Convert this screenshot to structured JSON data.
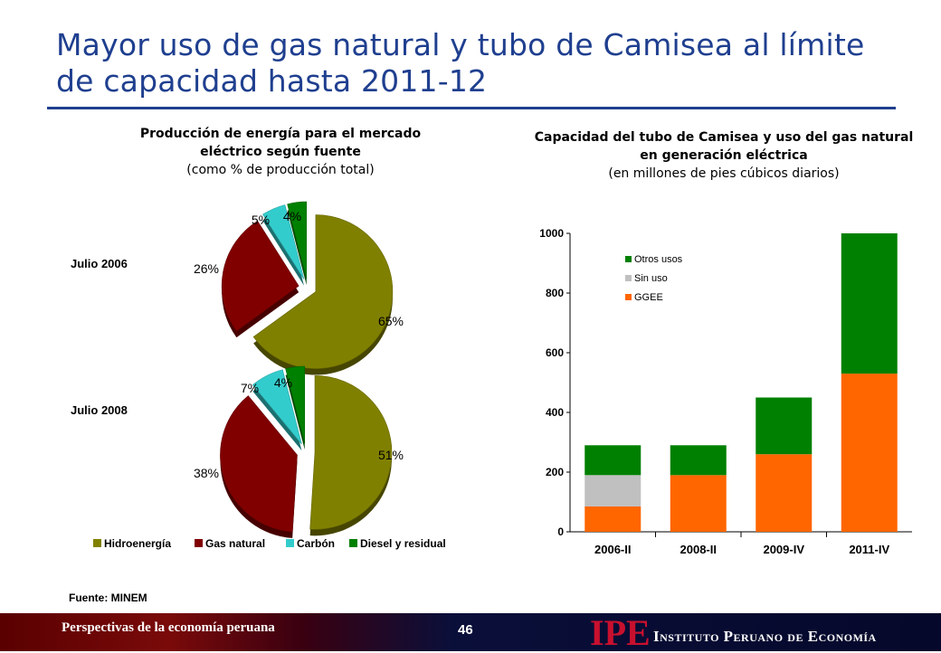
{
  "slide": {
    "title": "Mayor uso de gas natural y tubo de Camisea al límite de capacidad hasta 2011-12",
    "source": "Fuente: MINEM",
    "footer_left": "Perspectivas de la economía peruana",
    "page_number": "46",
    "logo": "IPE",
    "institute": "Instituto Peruano de Economía",
    "colors": {
      "title": "#1f3f8f",
      "footer_logo": "#c8102e"
    }
  },
  "pie_panel": {
    "title": "Producción de energía para el mercado eléctrico según fuente",
    "subtitle": "(como % de producción total)",
    "pie1_label": "Julio 2006",
    "pie2_label": "Julio 2008"
  },
  "bar_panel": {
    "title": "Capacidad del tubo de Camisea y uso del gas natural en generación eléctrica",
    "subtitle": "(en millones de pies cúbicos diarios)"
  },
  "chart_data": [
    {
      "type": "pie",
      "title": "Julio 2006",
      "categories": [
        "Hidroenergía",
        "Gas natural",
        "Carbón",
        "Diesel y residual"
      ],
      "values": [
        65,
        26,
        5,
        4
      ],
      "value_labels": [
        "65%",
        "26%",
        "5%",
        "4%"
      ],
      "colors": [
        "#808000",
        "#800000",
        "#33cccc",
        "#008000"
      ]
    },
    {
      "type": "pie",
      "title": "Julio 2008",
      "categories": [
        "Hidroenergía",
        "Gas natural",
        "Carbón",
        "Diesel y residual"
      ],
      "values": [
        51,
        38,
        7,
        4
      ],
      "value_labels": [
        "51%",
        "38%",
        "7%",
        "4%"
      ],
      "colors": [
        "#808000",
        "#800000",
        "#33cccc",
        "#008000"
      ],
      "legend": "bottom"
    },
    {
      "type": "bar",
      "stacked": true,
      "categories": [
        "2006-II",
        "2008-II",
        "2009-IV",
        "2011-IV"
      ],
      "series": [
        {
          "name": "GGEE",
          "values": [
            85,
            190,
            260,
            530
          ],
          "color": "#ff6600"
        },
        {
          "name": "Sin uso",
          "values": [
            105,
            0,
            0,
            0
          ],
          "color": "#c0c0c0"
        },
        {
          "name": "Otros usos",
          "values": [
            100,
            100,
            190,
            470
          ],
          "color": "#008000"
        }
      ],
      "ylim": [
        0,
        1000
      ],
      "yticks": [
        0,
        200,
        400,
        600,
        800,
        1000
      ],
      "legend": "top-left"
    }
  ]
}
